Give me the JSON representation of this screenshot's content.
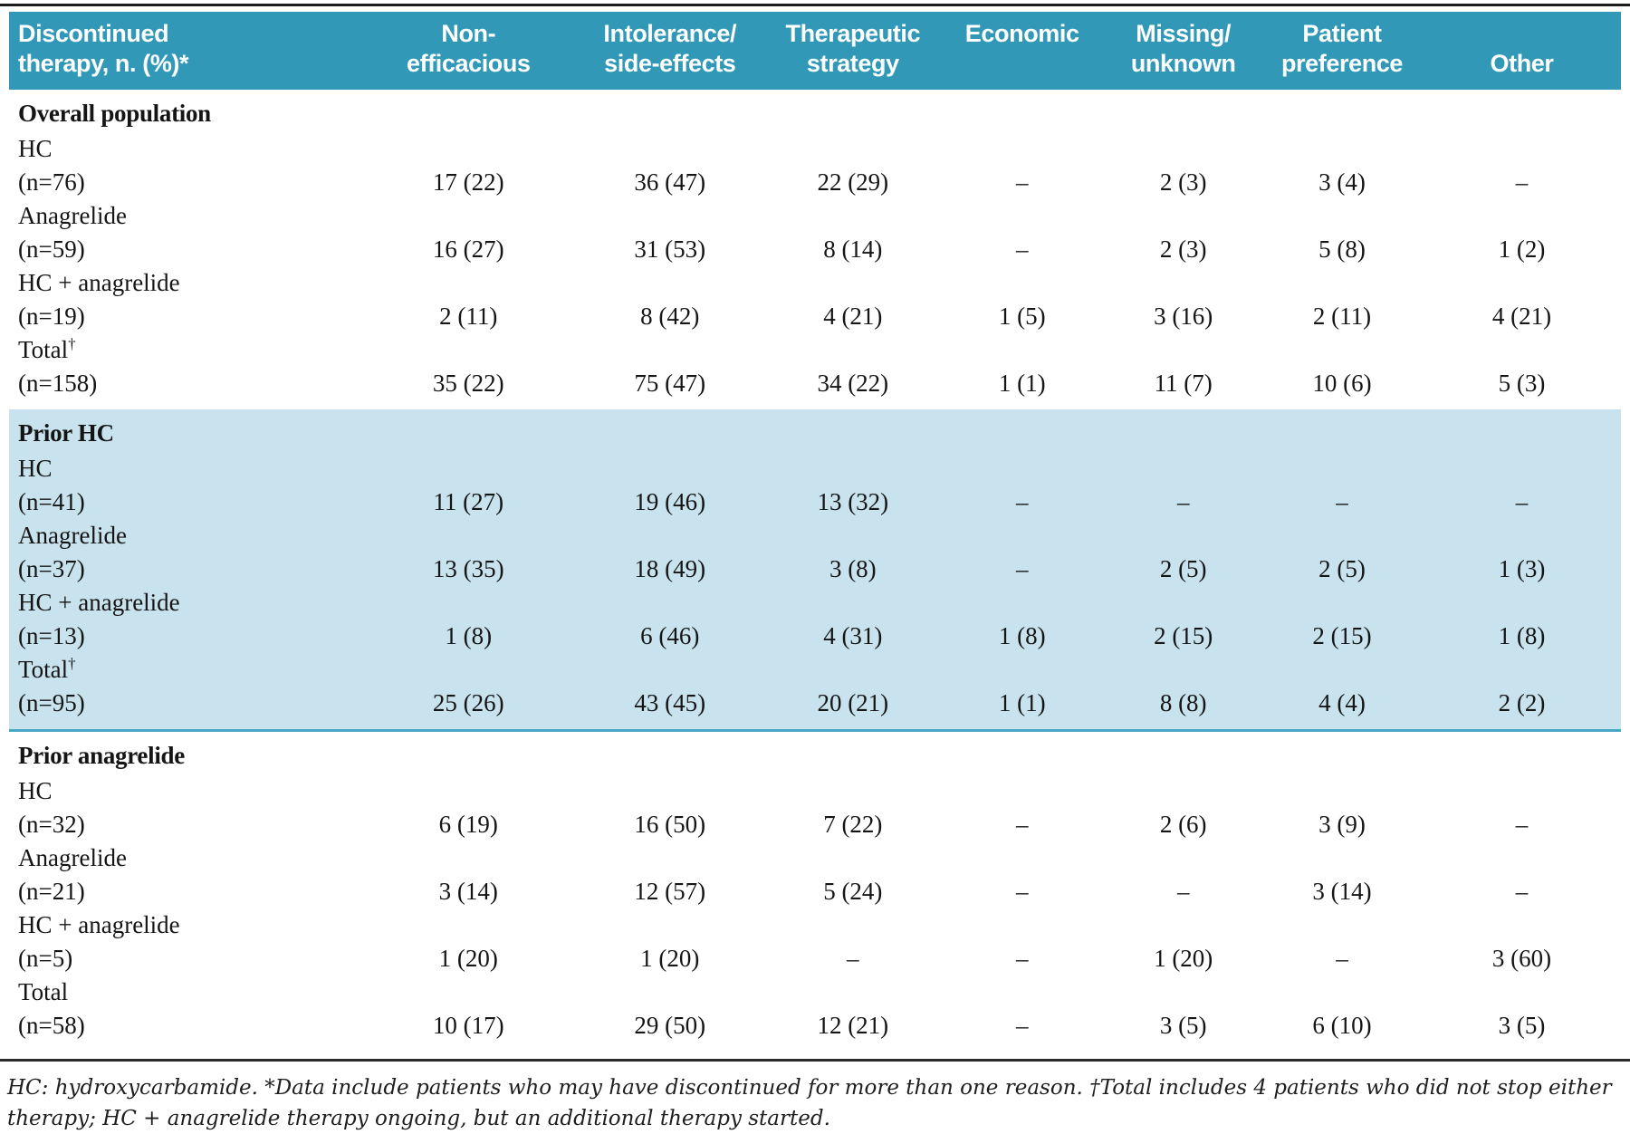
{
  "colors": {
    "header_bg": "#3199b7",
    "header_text": "#ffffff",
    "highlight_bg": "#c8e3ee",
    "highlight_border": "#49a8c6",
    "top_rule": "#1c1c1c",
    "bottom_rule": "#2a2a2a",
    "body_text": "#151515"
  },
  "table": {
    "headers": [
      {
        "line1": "Discontinued",
        "line2": "therapy, n. (%)*"
      },
      {
        "line1": "Non-",
        "line2": "efficacious"
      },
      {
        "line1": "Intolerance/",
        "line2": "side-effects"
      },
      {
        "line1": "Therapeutic",
        "line2": "strategy"
      },
      {
        "line1": "Economic",
        "line2": ""
      },
      {
        "line1": "Missing/",
        "line2": "unknown"
      },
      {
        "line1": "Patient",
        "line2": "preference"
      },
      {
        "line1": "",
        "line2": "Other"
      }
    ],
    "sections": [
      {
        "title": "Overall population",
        "highlight": false,
        "rows": [
          {
            "therapy": "HC",
            "n": "(n=76)",
            "values": [
              "17 (22)",
              "36 (47)",
              "22 (29)",
              "–",
              "2 (3)",
              "3 (4)",
              "–"
            ]
          },
          {
            "therapy": "Anagrelide",
            "n": "(n=59)",
            "values": [
              "16 (27)",
              "31 (53)",
              "8 (14)",
              "–",
              "2 (3)",
              "5 (8)",
              "1 (2)"
            ]
          },
          {
            "therapy": "HC + anagrelide",
            "n": "(n=19)",
            "values": [
              "2 (11)",
              "8 (42)",
              "4 (21)",
              "1 (5)",
              "3 (16)",
              "2 (11)",
              "4 (21)"
            ]
          },
          {
            "therapy": "Total†",
            "n": "(n=158)",
            "values": [
              "35 (22)",
              "75 (47)",
              "34 (22)",
              "1 (1)",
              "11 (7)",
              "10 (6)",
              "5 (3)"
            ]
          }
        ]
      },
      {
        "title": "Prior HC",
        "highlight": true,
        "rows": [
          {
            "therapy": "HC",
            "n": "(n=41)",
            "values": [
              "11 (27)",
              "19 (46)",
              "13 (32)",
              "–",
              "–",
              "–",
              "–"
            ]
          },
          {
            "therapy": "Anagrelide",
            "n": "(n=37)",
            "values": [
              "13 (35)",
              "18 (49)",
              "3 (8)",
              "–",
              "2 (5)",
              "2 (5)",
              "1 (3)"
            ]
          },
          {
            "therapy": "HC + anagrelide",
            "n": "(n=13)",
            "values": [
              "1 (8)",
              "6 (46)",
              "4 (31)",
              "1 (8)",
              "2 (15)",
              "2 (15)",
              "1 (8)"
            ]
          },
          {
            "therapy": "Total†",
            "n": "(n=95)",
            "values": [
              "25 (26)",
              "43 (45)",
              "20 (21)",
              "1 (1)",
              "8 (8)",
              "4 (4)",
              "2 (2)"
            ]
          }
        ]
      },
      {
        "title": "Prior anagrelide",
        "highlight": false,
        "rows": [
          {
            "therapy": "HC",
            "n": "(n=32)",
            "values": [
              "6 (19)",
              "16 (50)",
              "7 (22)",
              "–",
              "2 (6)",
              "3 (9)",
              "–"
            ]
          },
          {
            "therapy": "Anagrelide",
            "n": "(n=21)",
            "values": [
              "3 (14)",
              "12 (57)",
              "5 (24)",
              "–",
              "–",
              "3 (14)",
              "–"
            ]
          },
          {
            "therapy": "HC + anagrelide",
            "n": "(n=5)",
            "values": [
              "1 (20)",
              "1 (20)",
              "–",
              "–",
              "1 (20)",
              "–",
              "3 (60)"
            ]
          },
          {
            "therapy": "Total",
            "n": "(n=58)",
            "values": [
              "10 (17)",
              "29 (50)",
              "12 (21)",
              "–",
              "3 (5)",
              "6 (10)",
              "3 (5)"
            ]
          }
        ]
      }
    ],
    "footnote": "HC: hydroxycarbamide. *Data include patients who may have discontinued for more than one reason. †Total includes 4 patients who did not stop either therapy; HC + anagrelide therapy ongoing, but an additional therapy started."
  }
}
